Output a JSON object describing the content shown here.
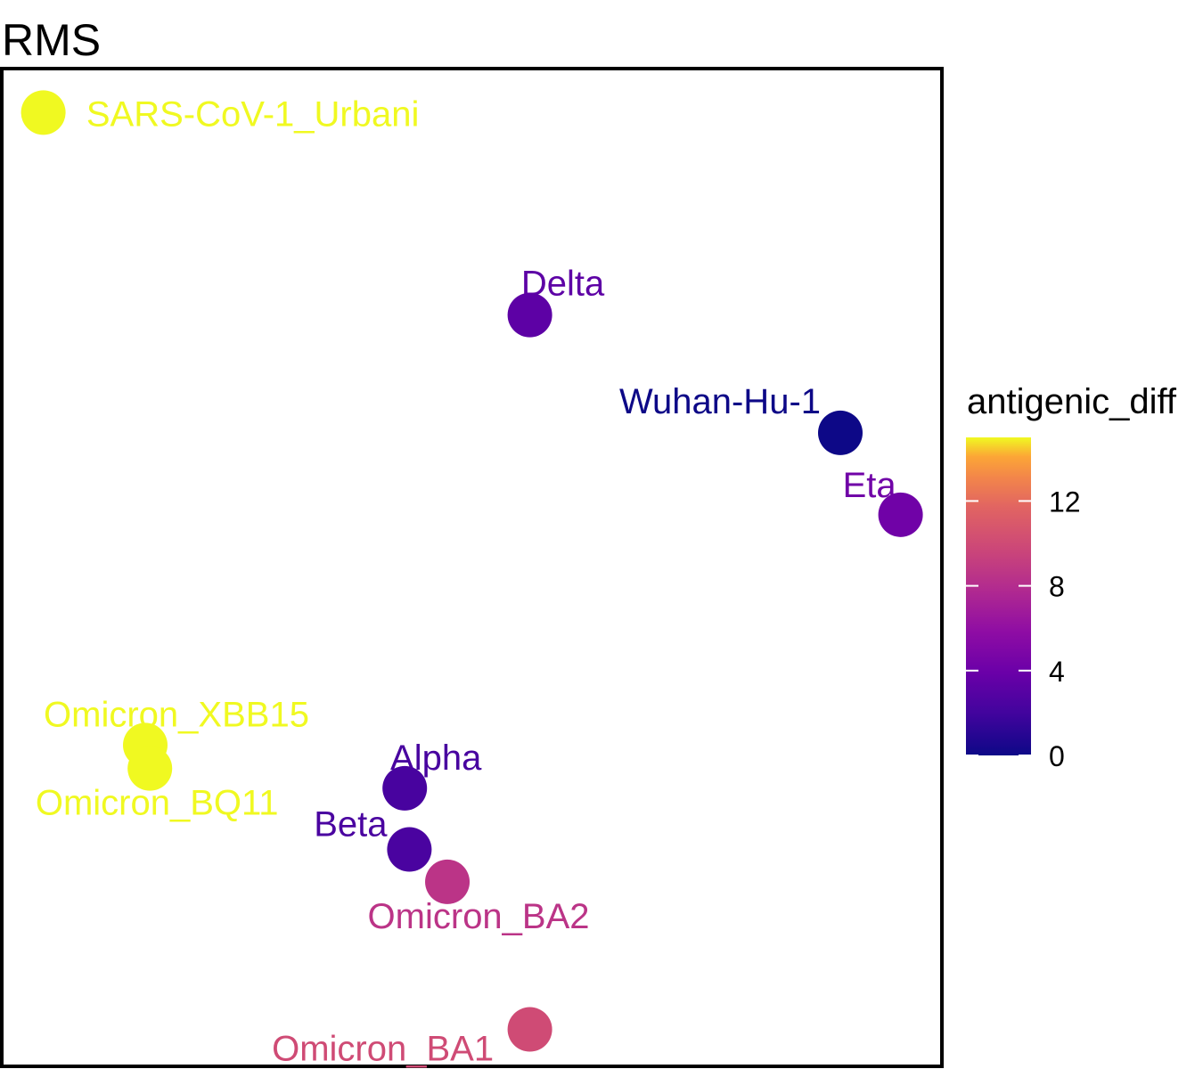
{
  "chart_data": {
    "type": "scatter",
    "title": "RMS",
    "xlabel": "",
    "ylabel": "",
    "grid": false,
    "legend": {
      "title": "antigenic_diff",
      "placement": "right",
      "type": "colorbar",
      "palette": "plasma",
      "range": [
        0,
        15
      ],
      "ticks": [
        0,
        4,
        8,
        12
      ],
      "tick_labels": [
        "0",
        "4",
        "8",
        "12"
      ]
    },
    "points": [
      {
        "label": "SARS-CoV-1_Urbani",
        "x": 0.4,
        "y": 10.65,
        "antigenic_diff": 15.0
      },
      {
        "label": "Delta",
        "x": 5.65,
        "y": 8.4,
        "antigenic_diff": 3.3
      },
      {
        "label": "Wuhan-Hu-1",
        "x": 9.0,
        "y": 7.09,
        "antigenic_diff": 0.0
      },
      {
        "label": "Eta",
        "x": 9.65,
        "y": 6.18,
        "antigenic_diff": 4.2
      },
      {
        "label": "Omicron_XBB15",
        "x": 1.5,
        "y": 3.62,
        "antigenic_diff": 15.0
      },
      {
        "label": "Omicron_BQ11",
        "x": 1.55,
        "y": 3.36,
        "antigenic_diff": 15.0
      },
      {
        "label": "Alpha",
        "x": 4.3,
        "y": 3.14,
        "antigenic_diff": 2.3
      },
      {
        "label": "Beta",
        "x": 4.35,
        "y": 2.46,
        "antigenic_diff": 2.4
      },
      {
        "label": "Omicron_BA2",
        "x": 4.76,
        "y": 2.1,
        "antigenic_diff": 8.5
      },
      {
        "label": "Omicron_BA1",
        "x": 5.65,
        "y": 0.46,
        "antigenic_diff": 10.0
      }
    ]
  }
}
